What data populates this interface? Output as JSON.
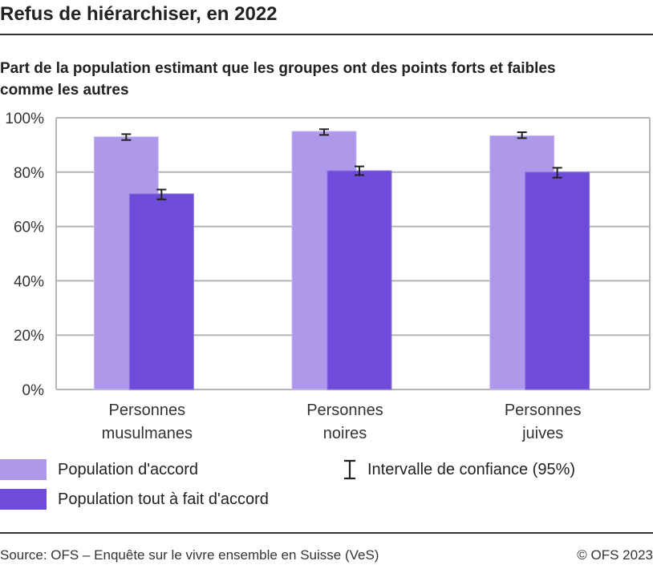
{
  "header": {
    "title": "Refus de hiérarchiser, en 2022",
    "subtitle": "Part de la population estimant que les groupes ont des points forts et faibles comme les autres"
  },
  "chart_data": {
    "type": "bar",
    "categories": [
      [
        "Personnes",
        "musulmanes"
      ],
      [
        "Personnes",
        "noires"
      ],
      [
        "Personnes",
        "juives"
      ]
    ],
    "series": [
      {
        "name": "Population d'accord",
        "values": [
          93,
          95,
          93.4
        ],
        "ci": [
          [
            91.8,
            94.0
          ],
          [
            93.7,
            95.8
          ],
          [
            92.5,
            94.7
          ]
        ],
        "color": "#ae98ea"
      },
      {
        "name": "Population tout à fait d'accord",
        "values": [
          72,
          80.5,
          80
        ],
        "ci": [
          [
            70.0,
            73.6
          ],
          [
            78.9,
            82.1
          ],
          [
            78.0,
            81.6
          ]
        ],
        "color": "#6e4cd9"
      }
    ],
    "ylim": [
      0,
      100
    ],
    "yticks": [
      "0%",
      "20%",
      "40%",
      "60%",
      "80%",
      "100%"
    ],
    "ytick_values": [
      0,
      20,
      40,
      60,
      80,
      100
    ],
    "grid": true,
    "legend_placement": "bottom",
    "ci_label": "Intervalle de confiance (95%)"
  },
  "footer": {
    "source": "Source: OFS – Enquête sur le vivre ensemble en Suisse (VeS)",
    "copyright": "© OFS 2023"
  }
}
